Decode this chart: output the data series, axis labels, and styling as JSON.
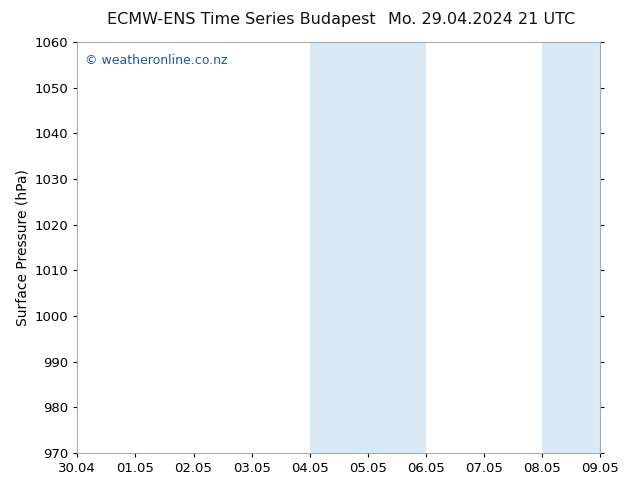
{
  "title_left": "ECMW-ENS Time Series Budapest",
  "title_right": "Mo. 29.04.2024 21 UTC",
  "ylabel": "Surface Pressure (hPa)",
  "ylim": [
    970,
    1060
  ],
  "yticks": [
    970,
    980,
    990,
    1000,
    1010,
    1020,
    1030,
    1040,
    1050,
    1060
  ],
  "xtick_labels": [
    "30.04",
    "01.05",
    "02.05",
    "03.05",
    "04.05",
    "05.05",
    "06.05",
    "07.05",
    "08.05",
    "09.05"
  ],
  "xtick_positions": [
    0,
    1,
    2,
    3,
    4,
    5,
    6,
    7,
    8,
    9
  ],
  "xlim": [
    0,
    9
  ],
  "shaded_bands": [
    {
      "x_start": 4,
      "x_end": 6
    },
    {
      "x_start": 8,
      "x_end": 9
    }
  ],
  "shaded_color": "#daeaf5",
  "background_color": "#ffffff",
  "plot_bg_color": "#ffffff",
  "border_color": "#aaaaaa",
  "watermark_text": "© weatheronline.co.nz",
  "watermark_color": "#2255aa",
  "title_fontsize": 11.5,
  "label_fontsize": 10,
  "tick_fontsize": 9.5,
  "watermark_fontsize": 9
}
